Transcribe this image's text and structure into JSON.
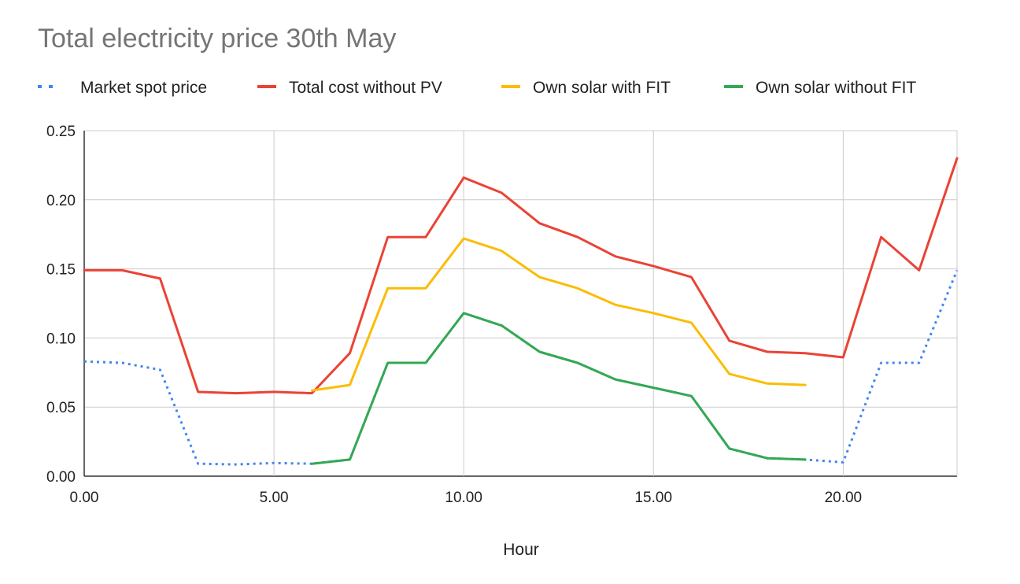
{
  "chart_data": {
    "type": "line",
    "title": "Total electricity price 30th May",
    "xlabel": "Hour",
    "ylabel": "",
    "xlim": [
      0,
      23
    ],
    "ylim": [
      0,
      0.25
    ],
    "grid": true,
    "legend_position": "top",
    "x_ticks": [
      "0.00",
      "5.00",
      "10.00",
      "15.00",
      "20.00"
    ],
    "y_ticks": [
      "0.00",
      "0.05",
      "0.10",
      "0.15",
      "0.20",
      "0.25"
    ],
    "x": [
      0,
      1,
      2,
      3,
      4,
      5,
      6,
      7,
      8,
      9,
      10,
      11,
      12,
      13,
      14,
      15,
      16,
      17,
      18,
      19,
      20,
      21,
      22,
      23
    ],
    "series": [
      {
        "name": "Market spot price",
        "color": "#4285f4",
        "style": "dotted",
        "values": [
          0.083,
          0.082,
          0.077,
          0.009,
          0.0085,
          0.0095,
          0.009,
          0.012,
          0.082,
          0.082,
          0.118,
          0.109,
          0.09,
          0.082,
          0.07,
          0.064,
          0.058,
          0.02,
          0.013,
          0.012,
          0.01,
          0.082,
          0.082,
          0.149
        ]
      },
      {
        "name": "Total cost without PV",
        "color": "#ea4335",
        "style": "solid",
        "values": [
          0.149,
          0.149,
          0.143,
          0.061,
          0.06,
          0.061,
          0.06,
          0.089,
          0.173,
          0.173,
          0.216,
          0.205,
          0.183,
          0.173,
          0.159,
          0.152,
          0.144,
          0.098,
          0.09,
          0.089,
          0.086,
          0.173,
          0.149,
          0.23
        ]
      },
      {
        "name": "Own solar with FIT",
        "color": "#fbbc04",
        "style": "solid",
        "values": [
          null,
          null,
          null,
          null,
          null,
          null,
          0.062,
          0.066,
          0.136,
          0.136,
          0.172,
          0.163,
          0.144,
          0.136,
          0.124,
          0.118,
          0.111,
          0.074,
          0.067,
          0.066,
          null,
          null,
          null,
          null
        ]
      },
      {
        "name": "Own solar without FIT",
        "color": "#34a853",
        "style": "solid",
        "values": [
          null,
          null,
          null,
          null,
          null,
          null,
          0.009,
          0.012,
          0.082,
          0.082,
          0.118,
          0.109,
          0.09,
          0.082,
          0.07,
          0.064,
          0.058,
          0.02,
          0.013,
          0.012,
          null,
          null,
          null,
          null
        ]
      }
    ]
  }
}
